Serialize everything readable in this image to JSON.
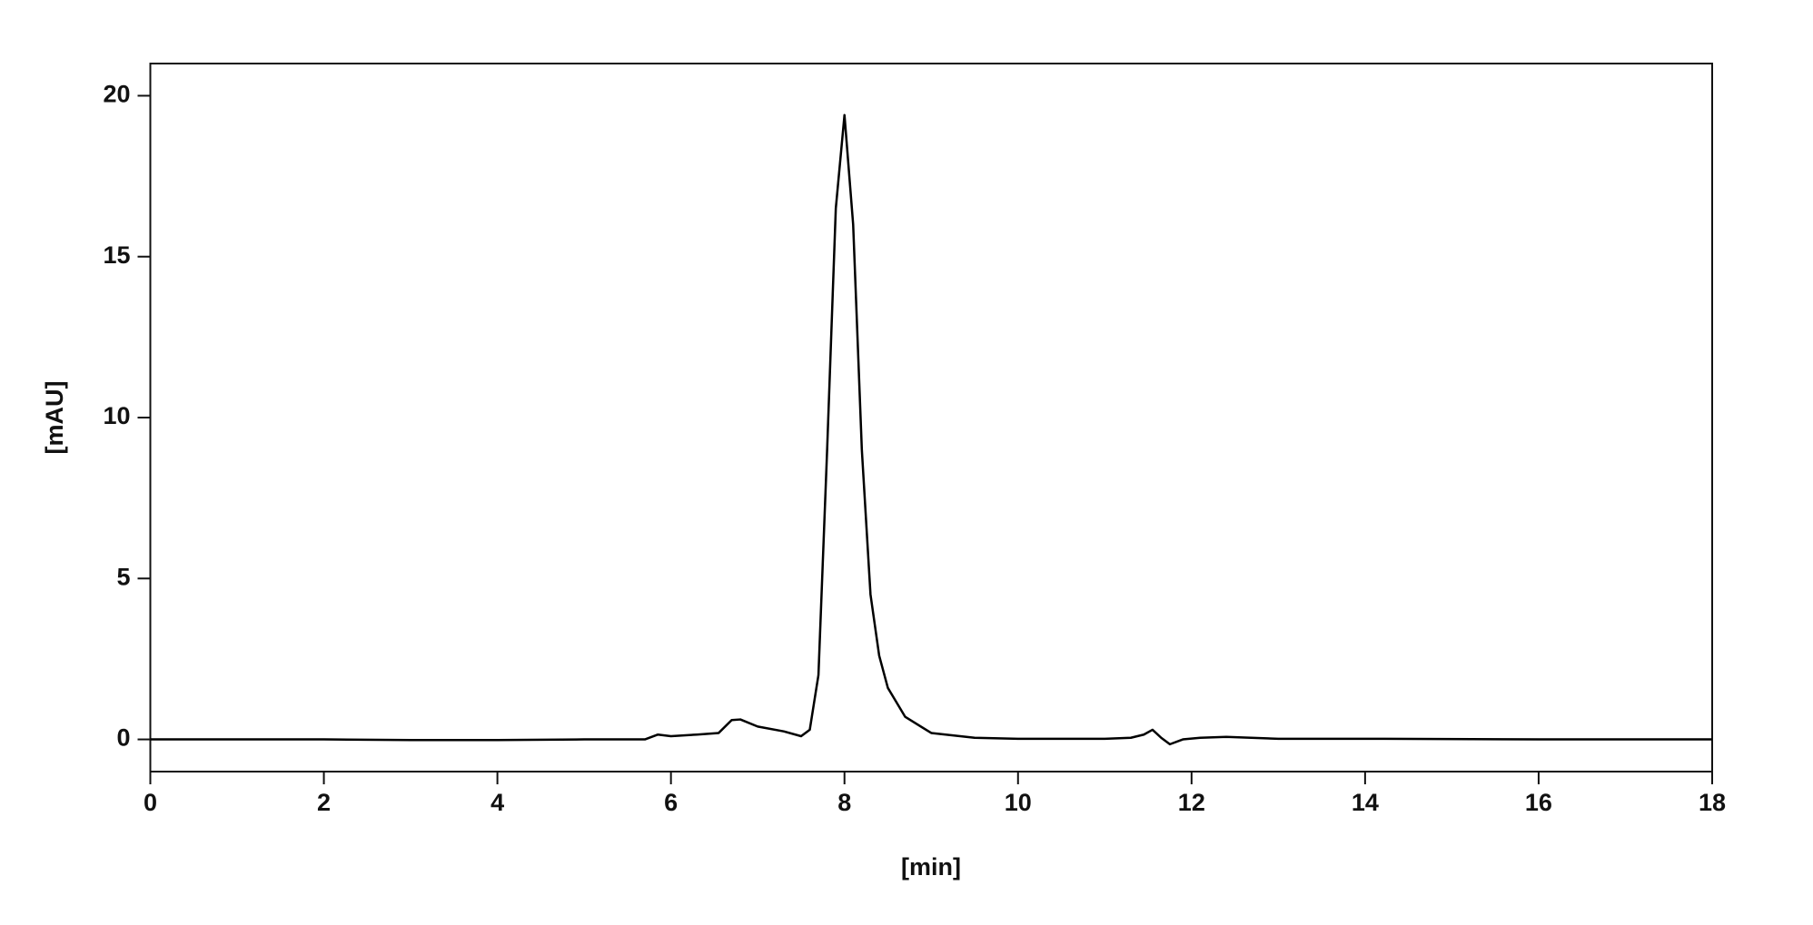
{
  "chart_data": {
    "type": "line",
    "x_label": "[min]",
    "y_label": "[mAU]",
    "x": [
      0,
      1,
      2,
      3,
      4,
      5,
      5.7,
      5.85,
      6.0,
      6.3,
      6.55,
      6.7,
      6.8,
      7.0,
      7.3,
      7.5,
      7.6,
      7.7,
      7.8,
      7.9,
      8.0,
      8.1,
      8.2,
      8.3,
      8.4,
      8.5,
      8.7,
      9.0,
      9.5,
      10,
      11,
      11.3,
      11.45,
      11.55,
      11.65,
      11.75,
      11.9,
      12.1,
      12.4,
      13,
      14,
      16,
      18
    ],
    "series": [
      {
        "color": "#000000",
        "values": [
          0,
          0,
          0,
          -0.02,
          -0.02,
          0,
          0,
          0.15,
          0.1,
          0.15,
          0.2,
          0.6,
          0.62,
          0.4,
          0.25,
          0.1,
          0.3,
          2.0,
          9,
          16.5,
          19.4,
          16,
          9,
          4.5,
          2.6,
          1.6,
          0.7,
          0.2,
          0.05,
          0.02,
          0.02,
          0.05,
          0.15,
          0.3,
          0.05,
          -0.15,
          0,
          0.05,
          0.08,
          0.02,
          0.02,
          0,
          0
        ]
      }
    ],
    "xlim": [
      0,
      18
    ],
    "xticks": [
      0,
      2,
      4,
      6,
      8,
      10,
      12,
      14,
      16,
      18
    ],
    "ylim": [
      -1,
      21
    ],
    "yticks": [
      0,
      5,
      10,
      15,
      20
    ],
    "grid": false
  }
}
